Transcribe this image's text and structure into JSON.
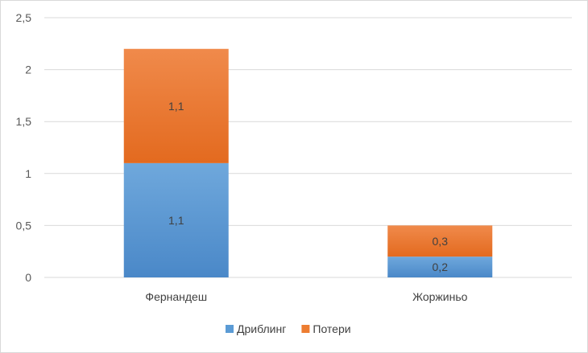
{
  "chart_data": {
    "type": "bar",
    "stacked": true,
    "categories": [
      "Фернандеш",
      "Жоржиньо"
    ],
    "series": [
      {
        "name": "Дриблинг",
        "values": [
          1.1,
          0.2
        ],
        "labels": [
          "1,1",
          "0,2"
        ],
        "color": "#5b9bd5"
      },
      {
        "name": "Потери",
        "values": [
          1.1,
          0.3
        ],
        "labels": [
          "1,1",
          "0,3"
        ],
        "color": "#ed7d31"
      }
    ],
    "ylim": [
      0,
      2.5
    ],
    "yticks": [
      0,
      0.5,
      1,
      1.5,
      2,
      2.5
    ],
    "ytick_labels": [
      "0",
      "0,5",
      "1",
      "1,5",
      "2",
      "2,5"
    ],
    "grid": true,
    "legend_position": "bottom",
    "title": "",
    "xlabel": "",
    "ylabel": ""
  }
}
